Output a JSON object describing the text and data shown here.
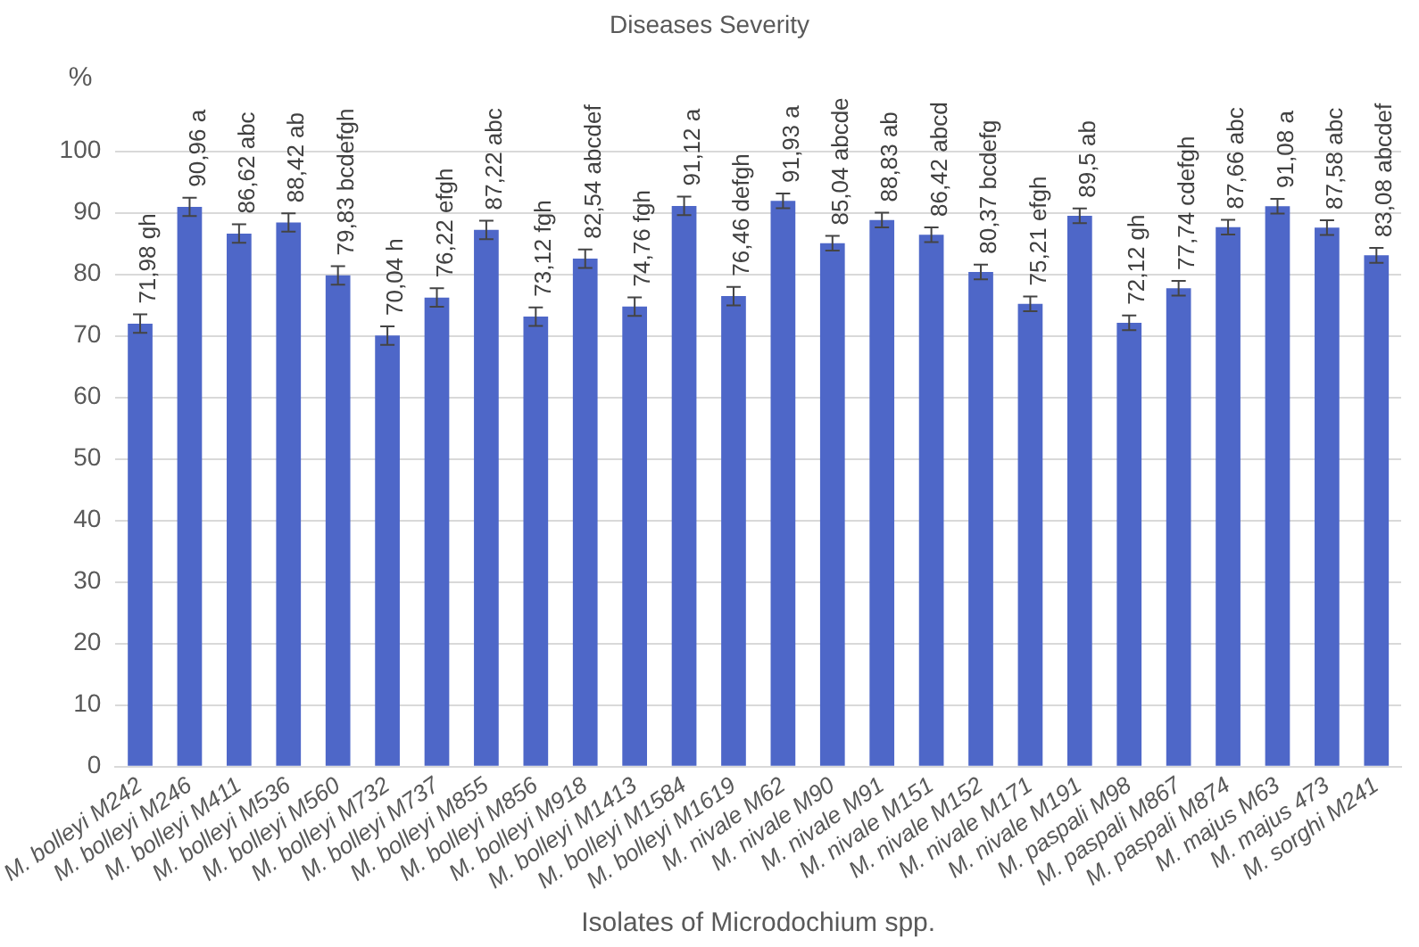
{
  "chart_data": {
    "type": "bar",
    "title": "Diseases Severity",
    "ylabel": "%",
    "xlabel": "Isolates of Microdochium spp.",
    "categories": [
      "M. bolleyi M242",
      "M. bolleyi M246",
      "M. bolleyi M411",
      "M. bolleyi M536",
      "M. bolleyi M560",
      "M. bolleyi M732",
      "M. bolleyi M737",
      "M. bolleyi M855",
      "M. bolleyi M856",
      "M. bolleyi M918",
      "M. bolleyi M1413",
      "M. bolleyi M1584",
      "M. bolleyi M1619",
      "M. nivale M62",
      "M. nivale M90",
      "M. nivale M91",
      "M. nivale M151",
      "M. nivale M152",
      "M. nivale M171",
      "M. nivale M191",
      "M. paspali M98",
      "M. paspali M867",
      "M. paspali M874",
      "M. majus M63",
      "M. majus 473",
      "M. sorghi M241"
    ],
    "values": [
      71.98,
      90.96,
      86.62,
      88.42,
      79.83,
      70.04,
      76.22,
      87.22,
      73.12,
      82.54,
      74.76,
      91.12,
      76.46,
      91.93,
      85.04,
      88.83,
      86.42,
      80.37,
      75.21,
      89.5,
      72.12,
      77.74,
      87.66,
      91.08,
      87.58,
      83.08
    ],
    "value_labels": [
      "71,98 gh",
      "90,96 a",
      "86,62 abc",
      "88,42 ab",
      "79,83 bcdefgh",
      "70,04 h",
      "76,22 efgh",
      "87,22 abc",
      "73,12 fgh",
      "82,54 abcdef",
      "74,76 fgh",
      "91,12 a",
      "76,46 defgh",
      "91,93 a",
      "85,04 abcde",
      "88,83 ab",
      "86,42 abcd",
      "80,37 bcdefg",
      "75,21 efgh",
      "89,5 ab",
      "72,12 gh",
      "77,74 cdefgh",
      "87,66 abc",
      "91,08 a",
      "87,58 abc",
      "83,08 abcdef"
    ],
    "errors": [
      1.5,
      1.5,
      1.5,
      1.5,
      1.5,
      1.5,
      1.5,
      1.5,
      1.5,
      1.5,
      1.5,
      1.5,
      1.5,
      1.2,
      1.2,
      1.2,
      1.2,
      1.2,
      1.2,
      1.2,
      1.2,
      1.2,
      1.2,
      1.2,
      1.2,
      1.2
    ],
    "color": "#4e67c8",
    "ylim": [
      0,
      100
    ],
    "yticks": [
      0,
      10,
      20,
      30,
      40,
      50,
      60,
      70,
      80,
      90,
      100
    ],
    "grid": "y"
  }
}
